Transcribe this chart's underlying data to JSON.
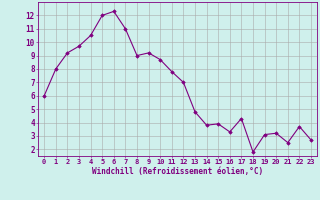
{
  "x": [
    0,
    1,
    2,
    3,
    4,
    5,
    6,
    7,
    8,
    9,
    10,
    11,
    12,
    13,
    14,
    15,
    16,
    17,
    18,
    19,
    20,
    21,
    22,
    23
  ],
  "y": [
    6.0,
    8.0,
    9.2,
    9.7,
    10.5,
    12.0,
    12.3,
    11.0,
    9.0,
    9.2,
    8.7,
    7.8,
    7.0,
    4.8,
    3.8,
    3.9,
    3.3,
    4.3,
    1.8,
    3.1,
    3.2,
    2.5,
    3.7,
    2.7
  ],
  "line_color": "#800080",
  "marker": "D",
  "marker_size": 1.8,
  "bg_color": "#cff0ec",
  "grid_color": "#aaaaaa",
  "xlabel": "Windchill (Refroidissement éolien,°C)",
  "xlabel_color": "#800080",
  "xlabel_fontsize": 5.5,
  "ylabel_ticks": [
    2,
    3,
    4,
    5,
    6,
    7,
    8,
    9,
    10,
    11,
    12
  ],
  "xtick_labels": [
    "0",
    "1",
    "2",
    "3",
    "4",
    "5",
    "6",
    "7",
    "8",
    "9",
    "10",
    "11",
    "12",
    "13",
    "14",
    "15",
    "16",
    "17",
    "18",
    "19",
    "20",
    "21",
    "22",
    "23"
  ],
  "ylim": [
    1.5,
    13.0
  ],
  "xlim": [
    -0.5,
    23.5
  ],
  "tick_color": "#800080",
  "ytick_fontsize": 5.5,
  "xtick_fontsize": 5.0,
  "spine_color": "#800080",
  "linewidth": 0.8
}
